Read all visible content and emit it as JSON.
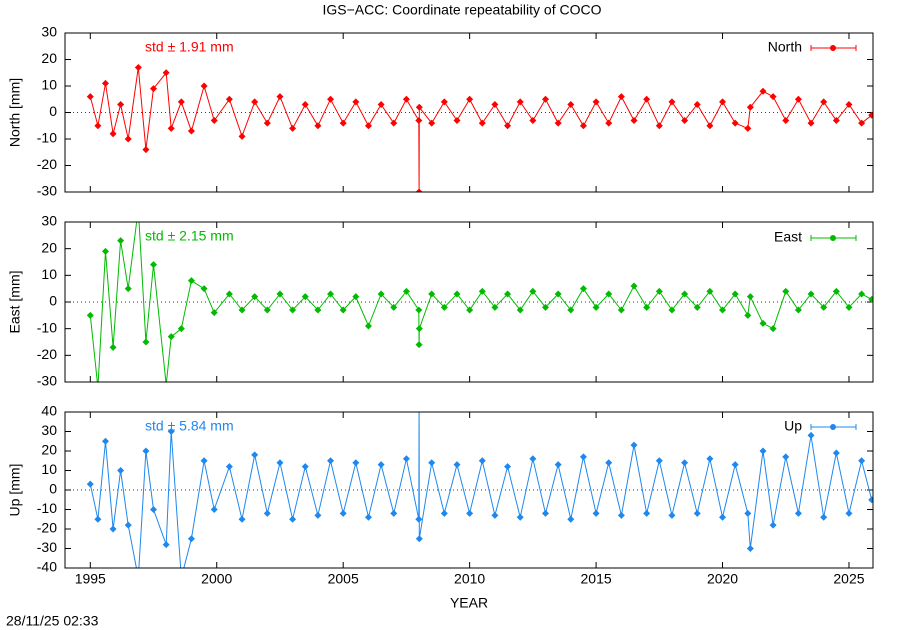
{
  "title": "IGS−ACC: Coordinate repeatability of COCO",
  "footer": "28/11/25 02:33",
  "chart_data": [
    {
      "type": "line",
      "ylabel": "North [mm]",
      "annotation": "std ± 1.91 mm",
      "xlim": [
        1994.0,
        2025.95
      ],
      "xticks": [
        1995,
        2000,
        2005,
        2010,
        2015,
        2020,
        2025
      ],
      "ylim": [
        -30,
        30
      ],
      "yticks": [
        -30,
        -20,
        -10,
        0,
        10,
        20,
        30
      ],
      "series": [
        {
          "name": "North",
          "color": "#ff0000",
          "x": [
            1995.0,
            1995.3,
            1995.6,
            1995.9,
            1996.2,
            1996.5,
            1996.9,
            1997.2,
            1997.5,
            1998.0,
            1998.2,
            1998.6,
            1999.0,
            1999.5,
            1999.9,
            2000.5,
            2001.0,
            2001.5,
            2002.0,
            2002.5,
            2003.0,
            2003.5,
            2004.0,
            2004.5,
            2005.0,
            2005.5,
            2006.0,
            2006.5,
            2007.0,
            2007.5,
            2007.99,
            2008.0,
            2008.01,
            2008.5,
            2009.0,
            2009.5,
            2010.0,
            2010.5,
            2011.0,
            2011.5,
            2012.0,
            2012.5,
            2013.0,
            2013.5,
            2014.0,
            2014.5,
            2015.0,
            2015.5,
            2016.0,
            2016.5,
            2017.0,
            2017.5,
            2018.0,
            2018.5,
            2019.0,
            2019.5,
            2020.0,
            2020.5,
            2021.0,
            2021.1,
            2021.6,
            2022.0,
            2022.5,
            2023.0,
            2023.5,
            2024.0,
            2024.5,
            2025.0,
            2025.5,
            2025.9
          ],
          "values": [
            6,
            -5,
            11,
            -8,
            3,
            -10,
            17,
            -14,
            9,
            15,
            -6,
            4,
            -7,
            10,
            -3,
            5,
            -9,
            4,
            -4,
            6,
            -6,
            3,
            -5,
            5,
            -4,
            4,
            -5,
            3,
            -4,
            5,
            -3,
            -30,
            2,
            -4,
            4,
            -3,
            5,
            -4,
            3,
            -5,
            4,
            -3,
            5,
            -4,
            3,
            -5,
            4,
            -4,
            6,
            -3,
            5,
            -5,
            4,
            -3,
            3,
            -5,
            4,
            -4,
            -6,
            2,
            8,
            6,
            -3,
            5,
            -4,
            4,
            -3,
            3,
            -4,
            -1
          ]
        }
      ]
    },
    {
      "type": "line",
      "ylabel": "East [mm]",
      "annotation": "std ± 2.15 mm",
      "xlim": [
        1994.0,
        2025.95
      ],
      "xticks": [
        1995,
        2000,
        2005,
        2010,
        2015,
        2020,
        2025
      ],
      "ylim": [
        -30,
        30
      ],
      "yticks": [
        -30,
        -20,
        -10,
        0,
        10,
        20,
        30
      ],
      "series": [
        {
          "name": "East",
          "color": "#00bb00",
          "x": [
            1995.0,
            1995.3,
            1995.6,
            1995.9,
            1996.2,
            1996.5,
            1996.9,
            1997.2,
            1997.5,
            1998.0,
            1998.2,
            1998.6,
            1999.0,
            1999.5,
            1999.9,
            2000.5,
            2001.0,
            2001.5,
            2002.0,
            2002.5,
            2003.0,
            2003.5,
            2004.0,
            2004.5,
            2005.0,
            2005.5,
            2006.0,
            2006.5,
            2007.0,
            2007.5,
            2007.99,
            2008.0,
            2008.01,
            2008.5,
            2009.0,
            2009.5,
            2010.0,
            2010.5,
            2011.0,
            2011.5,
            2012.0,
            2012.5,
            2013.0,
            2013.5,
            2014.0,
            2014.5,
            2015.0,
            2015.5,
            2016.0,
            2016.5,
            2017.0,
            2017.5,
            2018.0,
            2018.5,
            2019.0,
            2019.5,
            2020.0,
            2020.5,
            2021.0,
            2021.1,
            2021.6,
            2022.0,
            2022.5,
            2023.0,
            2023.5,
            2024.0,
            2024.5,
            2025.0,
            2025.5,
            2025.9
          ],
          "values": [
            -5,
            -32,
            19,
            -17,
            23,
            5,
            35,
            -15,
            14,
            -31,
            -13,
            -10,
            8,
            5,
            -4,
            3,
            -3,
            2,
            -3,
            3,
            -3,
            2,
            -3,
            3,
            -3,
            2,
            -9,
            3,
            -2,
            4,
            -3,
            -16,
            -10,
            3,
            -2,
            3,
            -3,
            4,
            -2,
            3,
            -3,
            4,
            -2,
            3,
            -3,
            5,
            -2,
            3,
            -3,
            6,
            -2,
            4,
            -3,
            3,
            -2,
            4,
            -3,
            3,
            -5,
            2,
            -8,
            -10,
            4,
            -3,
            3,
            -2,
            4,
            -2,
            3,
            1
          ]
        }
      ]
    },
    {
      "type": "line",
      "ylabel": "Up [mm]",
      "annotation": "std ± 5.84 mm",
      "xlabel": "YEAR",
      "xlim": [
        1994.0,
        2025.95
      ],
      "xticks": [
        1995,
        2000,
        2005,
        2010,
        2015,
        2020,
        2025
      ],
      "ylim": [
        -40,
        40
      ],
      "yticks": [
        -40,
        -30,
        -20,
        -10,
        0,
        10,
        20,
        30,
        40
      ],
      "series": [
        {
          "name": "Up",
          "color": "#1e88ee",
          "x": [
            1995.0,
            1995.3,
            1995.6,
            1995.9,
            1996.2,
            1996.5,
            1996.9,
            1997.2,
            1997.5,
            1998.0,
            1998.2,
            1998.6,
            1999.0,
            1999.5,
            1999.9,
            2000.5,
            2001.0,
            2001.5,
            2002.0,
            2002.5,
            2003.0,
            2003.5,
            2004.0,
            2004.5,
            2005.0,
            2005.5,
            2006.0,
            2006.5,
            2007.0,
            2007.5,
            2007.99,
            2008.0,
            2008.01,
            2008.5,
            2009.0,
            2009.5,
            2010.0,
            2010.5,
            2011.0,
            2011.5,
            2012.0,
            2012.5,
            2013.0,
            2013.5,
            2014.0,
            2014.5,
            2015.0,
            2015.5,
            2016.0,
            2016.5,
            2017.0,
            2017.5,
            2018.0,
            2018.5,
            2019.0,
            2019.5,
            2020.0,
            2020.5,
            2021.0,
            2021.1,
            2021.6,
            2022.0,
            2022.5,
            2023.0,
            2023.5,
            2024.0,
            2024.5,
            2025.0,
            2025.5,
            2025.9
          ],
          "values": [
            3,
            -15,
            25,
            -20,
            10,
            -18,
            -45,
            20,
            -10,
            -28,
            30,
            -45,
            -25,
            15,
            -10,
            12,
            -15,
            18,
            -12,
            14,
            -15,
            12,
            -13,
            15,
            -12,
            14,
            -14,
            13,
            -12,
            16,
            -15,
            45,
            -25,
            14,
            -12,
            13,
            -12,
            15,
            -13,
            12,
            -14,
            16,
            -12,
            13,
            -15,
            17,
            -12,
            14,
            -13,
            23,
            -12,
            15,
            -13,
            14,
            -12,
            16,
            -14,
            13,
            -12,
            -30,
            20,
            -18,
            17,
            -12,
            28,
            -14,
            19,
            -12,
            15,
            -5
          ]
        }
      ]
    }
  ]
}
